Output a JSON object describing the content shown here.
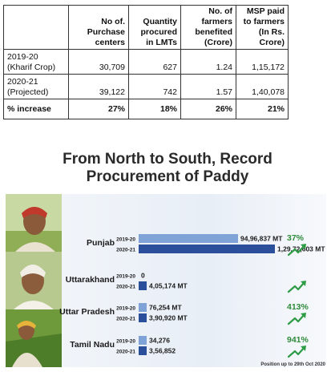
{
  "table": {
    "headers": [
      "",
      "No of. Purchase centers",
      "Quantity procured in LMTs",
      "No. of farmers benefited (Crore)",
      "MSP paid to farmers (In Rs. Crore)"
    ],
    "rows": [
      [
        "2019-20 (Kharif Crop)",
        "30,709",
        "627",
        "1.24",
        "1,15,172"
      ],
      [
        "2020-21 (Projected)",
        "39,122",
        "742",
        "1.57",
        "1,40,078"
      ],
      [
        "% increase",
        "27%",
        "18%",
        "26%",
        "21%"
      ]
    ]
  },
  "headline": {
    "line1": "From North to South, Record",
    "line2": "Procurement of Paddy"
  },
  "note": "Position up to 29th Oct 2020",
  "colors": {
    "bar_2019": "#7fa3d6",
    "bar_2020": "#2b4f9a",
    "pct": "#2e8b3a",
    "arrow": "#2e9b45",
    "label": "#1a1a1a"
  },
  "chart_data": {
    "type": "bar",
    "orientation": "horizontal",
    "title": "From North to South, Record Procurement of Paddy",
    "unit": "MT",
    "categories": [
      "Punjab",
      "Uttarakhand",
      "Uttar Pradesh",
      "Tamil Nadu"
    ],
    "series": [
      {
        "name": "2019-20",
        "values": [
          9496837,
          0,
          76254,
          34276
        ],
        "labels": [
          "94,96,837 MT",
          "0",
          "76,254 MT",
          "34,276"
        ]
      },
      {
        "name": "2020-21",
        "values": [
          12972603,
          405174,
          390920,
          356852
        ],
        "labels": [
          "1,29,72,603 MT",
          "4,05,174 MT",
          "3,90,920 MT",
          "3,56,852"
        ]
      }
    ],
    "growth": [
      "37%",
      "",
      "413%",
      "941%"
    ],
    "icons": [
      "trend-up-arrow",
      "trend-up-arrow",
      "trend-up-arrow",
      "trend-up-arrow"
    ]
  }
}
